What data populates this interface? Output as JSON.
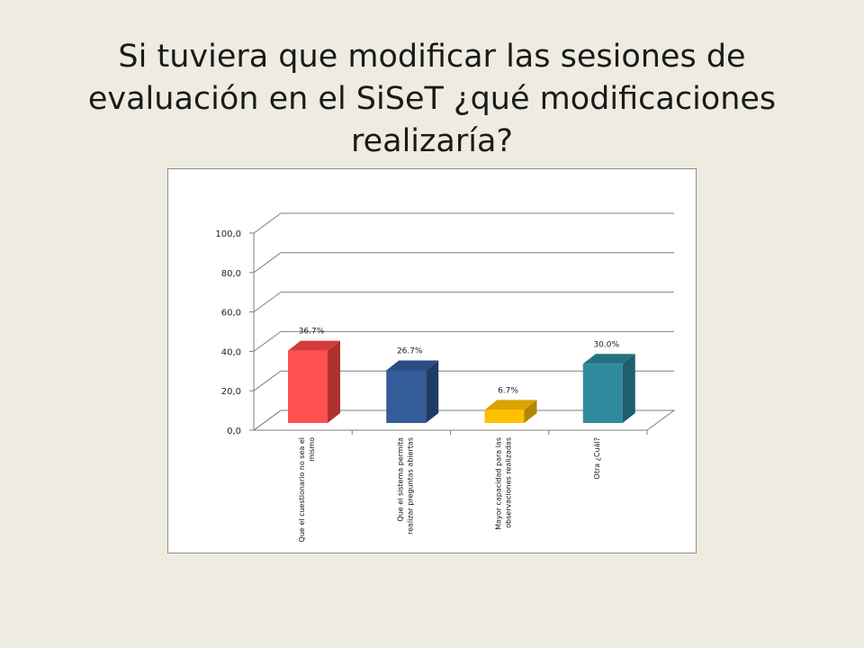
{
  "slide": {
    "title_line1": "Si tuviera que modificar las sesiones de",
    "title_line2": "evaluación en el SiSeT ¿qué modificaciones",
    "title_line3": "realizaría?"
  },
  "chart_data": {
    "type": "bar",
    "title": "",
    "xlabel": "",
    "ylabel": "",
    "ylim": [
      0,
      100
    ],
    "yticks": [
      "0,0",
      "20,0",
      "40,0",
      "60,0",
      "80,0",
      "100,0"
    ],
    "categories": [
      [
        "Que el cuestionario no sea el",
        "mismo"
      ],
      [
        "Que el sistema permita",
        "realizar preguntas abiertas"
      ],
      [
        "Mayor capacidad para las",
        "observaciones realizadas"
      ],
      [
        "Otra ¿Cuál?"
      ]
    ],
    "values": [
      36.7,
      26.7,
      6.7,
      30.0
    ],
    "data_labels": [
      "36.7%",
      "26.7%",
      "6.7%",
      "30.0%"
    ],
    "colors": [
      "#ff5050",
      "#335c99",
      "#ffc000",
      "#2f8a9e"
    ],
    "side_colors": [
      "#b03030",
      "#203c66",
      "#b08600",
      "#1f5e6c"
    ],
    "top_colors": [
      "#d43c3c",
      "#2a4d80",
      "#d9a300",
      "#267282"
    ],
    "grid": true
  }
}
